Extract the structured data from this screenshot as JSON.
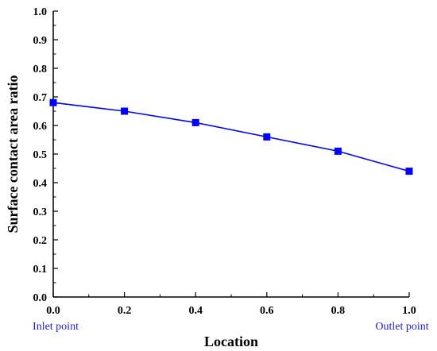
{
  "chart_data": {
    "type": "line",
    "title": "",
    "xlabel": "Location",
    "ylabel": "Surface contact area ratio",
    "xlim": [
      0.0,
      1.0
    ],
    "ylim": [
      0.0,
      1.0
    ],
    "x_ticks": [
      "0.0",
      "0.2",
      "0.4",
      "0.6",
      "0.8",
      "1.0"
    ],
    "y_ticks": [
      "0.0",
      "0.1",
      "0.2",
      "0.3",
      "0.4",
      "0.5",
      "0.6",
      "0.7",
      "0.8",
      "0.9",
      "1.0"
    ],
    "grid": false,
    "legend": "none",
    "annotations": {
      "left": "Inlet point",
      "right": "Outlet point"
    },
    "series": [
      {
        "x": [
          0.0,
          0.2,
          0.4,
          0.6,
          0.8,
          1.0
        ],
        "values": [
          0.68,
          0.65,
          0.61,
          0.56,
          0.51,
          0.44
        ],
        "color": "#0000ff",
        "marker": "square"
      }
    ]
  }
}
